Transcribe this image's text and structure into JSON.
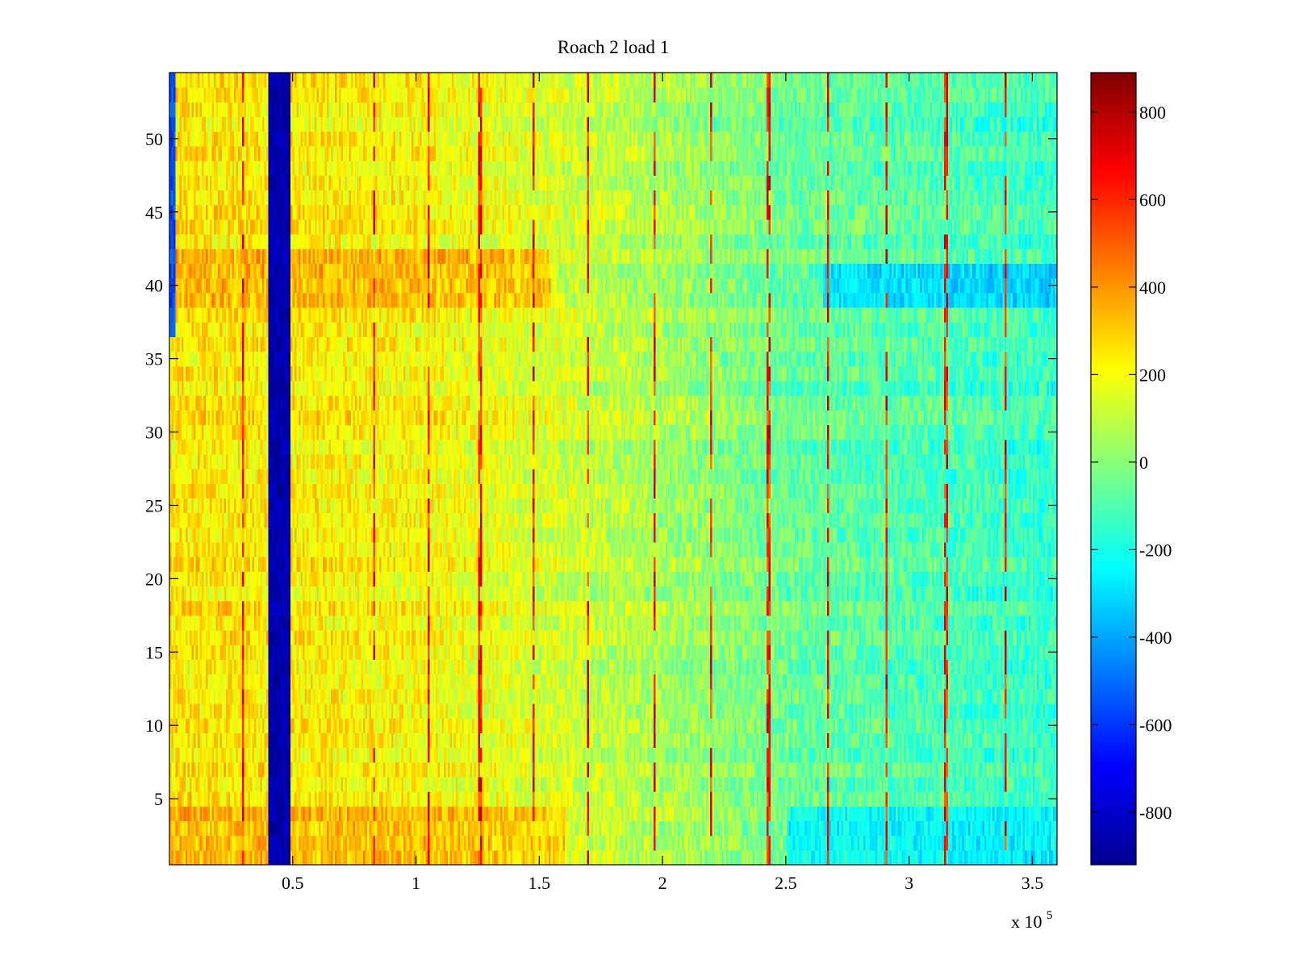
{
  "chart_data": {
    "type": "heatmap",
    "title": "Roach 2 load 1",
    "xlabel": "",
    "ylabel": "",
    "x_exponent_label": {
      "base": "x 10",
      "power": "5"
    },
    "xlim": [
      0,
      360000
    ],
    "ylim": [
      0.5,
      54.5
    ],
    "clim": [
      -920,
      890
    ],
    "colormap": "jet",
    "grid": false,
    "x_ticks": [
      {
        "value": 50000,
        "label": "0.5"
      },
      {
        "value": 100000,
        "label": "1"
      },
      {
        "value": 150000,
        "label": "1.5"
      },
      {
        "value": 200000,
        "label": "2"
      },
      {
        "value": 250000,
        "label": "2.5"
      },
      {
        "value": 300000,
        "label": "3"
      },
      {
        "value": 350000,
        "label": "3.5"
      }
    ],
    "y_ticks": [
      {
        "value": 5,
        "label": "5"
      },
      {
        "value": 10,
        "label": "10"
      },
      {
        "value": 15,
        "label": "15"
      },
      {
        "value": 20,
        "label": "20"
      },
      {
        "value": 25,
        "label": "25"
      },
      {
        "value": 30,
        "label": "30"
      },
      {
        "value": 35,
        "label": "35"
      },
      {
        "value": 40,
        "label": "40"
      },
      {
        "value": 45,
        "label": "45"
      },
      {
        "value": 50,
        "label": "50"
      }
    ],
    "colorbar": {
      "ticks": [
        {
          "value": 800,
          "label": "800"
        },
        {
          "value": 600,
          "label": "600"
        },
        {
          "value": 400,
          "label": "400"
        },
        {
          "value": 200,
          "label": "200"
        },
        {
          "value": 0,
          "label": "0"
        },
        {
          "value": -200,
          "label": "-200"
        },
        {
          "value": -400,
          "label": "-400"
        },
        {
          "value": -600,
          "label": "-600"
        },
        {
          "value": -800,
          "label": "-800"
        }
      ]
    },
    "rows": 54,
    "features": {
      "cold_band": {
        "x_range": [
          40000,
          49000
        ],
        "value": -840
      },
      "left_edge_cold": {
        "x_range": [
          0,
          2500
        ],
        "y_range": [
          36.5,
          54.5
        ],
        "value": -550
      },
      "hot_rows": [
        {
          "y_range": [
            38.5,
            42.5
          ],
          "x_range": [
            0,
            155000
          ],
          "value": 420
        },
        {
          "y_range": [
            0.5,
            4.5
          ],
          "x_range": [
            0,
            160000
          ],
          "value": 380
        }
      ],
      "cold_rows": [
        {
          "y_range": [
            38.5,
            41.5
          ],
          "x_range": [
            265000,
            360000
          ],
          "value": -420
        },
        {
          "y_range": [
            0.5,
            4.5
          ],
          "x_range": [
            250000,
            360000
          ],
          "value": -350
        }
      ],
      "hot_stripes_x": [
        30000,
        83000,
        105000,
        126000,
        148000,
        170000,
        197000,
        220000,
        243000,
        267000,
        291000,
        315000,
        339000
      ],
      "trend": [
        {
          "x": 0,
          "value": 260
        },
        {
          "x": 100000,
          "value": 220
        },
        {
          "x": 170000,
          "value": 120
        },
        {
          "x": 260000,
          "value": -60
        },
        {
          "x": 360000,
          "value": -140
        }
      ]
    }
  }
}
